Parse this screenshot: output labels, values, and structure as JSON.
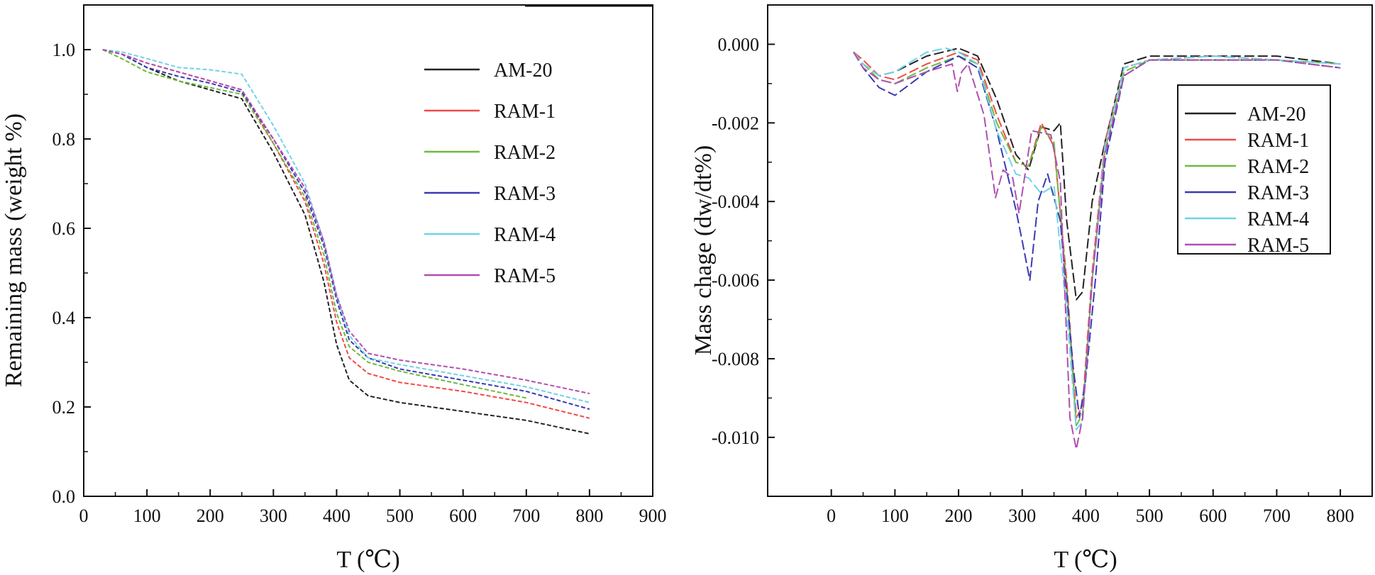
{
  "colors": {
    "AM-20": "#222222",
    "RAM-1": "#ef4a4a",
    "RAM-2": "#6cbb3c",
    "RAM-3": "#3a3ab4",
    "RAM-4": "#6fd3e6",
    "RAM-5": "#b04fb0"
  },
  "chart_data": [
    {
      "type": "line",
      "xlabel": "T (℃)",
      "ylabel": "Remaining mass (weight %)",
      "xlim": [
        0,
        900
      ],
      "ylim": [
        0.0,
        1.1
      ],
      "xticks": [
        0,
        100,
        200,
        300,
        400,
        500,
        600,
        700,
        800,
        900
      ],
      "yticks": [
        0.0,
        0.2,
        0.4,
        0.6,
        0.8,
        1.0
      ],
      "xtick_labels": [
        "0",
        "100",
        "200",
        "300",
        "400",
        "500",
        "600",
        "700",
        "800",
        "900"
      ],
      "ytick_labels": [
        "0.0",
        "0.2",
        "0.4",
        "0.6",
        "0.8",
        "1.0"
      ],
      "legend_position": "upper-right",
      "grid": false,
      "series": [
        {
          "name": "AM-20",
          "x": [
            30,
            60,
            100,
            150,
            200,
            250,
            300,
            350,
            380,
            400,
            420,
            450,
            500,
            600,
            700,
            800
          ],
          "y": [
            1.0,
            0.99,
            0.96,
            0.93,
            0.91,
            0.89,
            0.77,
            0.63,
            0.48,
            0.34,
            0.26,
            0.225,
            0.21,
            0.19,
            0.17,
            0.14
          ]
        },
        {
          "name": "RAM-1",
          "x": [
            30,
            60,
            100,
            150,
            200,
            250,
            300,
            350,
            380,
            400,
            420,
            450,
            500,
            600,
            700,
            800
          ],
          "y": [
            1.0,
            0.99,
            0.97,
            0.95,
            0.93,
            0.91,
            0.79,
            0.66,
            0.52,
            0.39,
            0.31,
            0.275,
            0.255,
            0.235,
            0.21,
            0.175
          ]
        },
        {
          "name": "RAM-2",
          "x": [
            30,
            60,
            100,
            150,
            200,
            250,
            300,
            350,
            380,
            400,
            420,
            450,
            500,
            600,
            700
          ],
          "y": [
            1.0,
            0.98,
            0.95,
            0.93,
            0.915,
            0.9,
            0.79,
            0.67,
            0.54,
            0.41,
            0.335,
            0.3,
            0.28,
            0.25,
            0.22
          ]
        },
        {
          "name": "RAM-3",
          "x": [
            30,
            60,
            100,
            150,
            200,
            250,
            300,
            350,
            380,
            400,
            420,
            450,
            500,
            600,
            700,
            800
          ],
          "y": [
            1.0,
            0.99,
            0.96,
            0.94,
            0.925,
            0.905,
            0.8,
            0.68,
            0.56,
            0.44,
            0.35,
            0.31,
            0.285,
            0.26,
            0.235,
            0.195
          ]
        },
        {
          "name": "RAM-4",
          "x": [
            30,
            60,
            100,
            150,
            200,
            250,
            300,
            350,
            380,
            400,
            420,
            450,
            500,
            600,
            700,
            800
          ],
          "y": [
            1.0,
            0.995,
            0.98,
            0.96,
            0.955,
            0.945,
            0.83,
            0.7,
            0.57,
            0.45,
            0.36,
            0.31,
            0.295,
            0.27,
            0.245,
            0.21
          ]
        },
        {
          "name": "RAM-5",
          "x": [
            30,
            60,
            100,
            150,
            200,
            250,
            300,
            350,
            380,
            400,
            420,
            450,
            500,
            600,
            700,
            800
          ],
          "y": [
            1.0,
            0.99,
            0.97,
            0.95,
            0.93,
            0.91,
            0.8,
            0.69,
            0.57,
            0.45,
            0.37,
            0.32,
            0.305,
            0.285,
            0.26,
            0.23
          ]
        }
      ]
    },
    {
      "type": "line",
      "xlabel": "T (℃)",
      "ylabel": "Mass chage (dw/dt%)",
      "xlim": [
        -100,
        850
      ],
      "ylim": [
        -0.0115,
        0.001
      ],
      "xticks": [
        0,
        100,
        200,
        300,
        400,
        500,
        600,
        700,
        800
      ],
      "yticks": [
        0.0,
        -0.002,
        -0.004,
        -0.006,
        -0.008,
        -0.01
      ],
      "xtick_labels": [
        "0",
        "100",
        "200",
        "300",
        "400",
        "500",
        "600",
        "700",
        "800"
      ],
      "ytick_labels": [
        "0.000",
        "-0.002",
        "-0.004",
        "-0.006",
        "-0.008",
        "-0.010"
      ],
      "legend_position": "right",
      "grid": false,
      "series": [
        {
          "name": "AM-20",
          "x": [
            35,
            50,
            75,
            100,
            150,
            200,
            230,
            260,
            290,
            310,
            330,
            350,
            360,
            370,
            385,
            395,
            410,
            430,
            460,
            500,
            600,
            700,
            800
          ],
          "y": [
            -0.0002,
            -0.0005,
            -0.0008,
            -0.0007,
            -0.0003,
            -0.0001,
            -0.0003,
            -0.0014,
            -0.0028,
            -0.0032,
            -0.0021,
            -0.0022,
            -0.002,
            -0.0045,
            -0.0065,
            -0.0063,
            -0.004,
            -0.0025,
            -0.0005,
            -0.0003,
            -0.0003,
            -0.0003,
            -0.0005
          ]
        },
        {
          "name": "RAM-1",
          "x": [
            35,
            50,
            75,
            100,
            150,
            200,
            230,
            260,
            290,
            310,
            330,
            350,
            370,
            385,
            395,
            410,
            430,
            460,
            500,
            600,
            700,
            800
          ],
          "y": [
            -0.0002,
            -0.0004,
            -0.0008,
            -0.0009,
            -0.0005,
            -0.0002,
            -0.0004,
            -0.0018,
            -0.003,
            -0.0031,
            -0.002,
            -0.0026,
            -0.006,
            -0.0095,
            -0.0092,
            -0.0058,
            -0.0025,
            -0.0006,
            -0.0004,
            -0.0003,
            -0.0004,
            -0.0005
          ]
        },
        {
          "name": "RAM-2",
          "x": [
            35,
            50,
            75,
            100,
            150,
            200,
            230,
            260,
            290,
            310,
            330,
            350,
            370,
            385,
            395,
            410,
            430,
            460,
            500,
            600,
            700,
            800
          ],
          "y": [
            -0.0002,
            -0.0005,
            -0.0009,
            -0.001,
            -0.0006,
            -0.0003,
            -0.0005,
            -0.002,
            -0.003,
            -0.0031,
            -0.0021,
            -0.0025,
            -0.0062,
            -0.0097,
            -0.0094,
            -0.006,
            -0.0027,
            -0.0007,
            -0.0004,
            -0.0004,
            -0.0004,
            -0.0005
          ]
        },
        {
          "name": "RAM-3",
          "x": [
            35,
            50,
            75,
            100,
            150,
            200,
            230,
            260,
            290,
            300,
            312,
            325,
            340,
            360,
            380,
            390,
            400,
            415,
            430,
            460,
            500,
            600,
            700,
            800
          ],
          "y": [
            -0.0002,
            -0.0006,
            -0.0011,
            -0.0013,
            -0.0007,
            -0.0003,
            -0.0006,
            -0.0022,
            -0.0042,
            -0.005,
            -0.006,
            -0.004,
            -0.0033,
            -0.0045,
            -0.0082,
            -0.0095,
            -0.0085,
            -0.006,
            -0.003,
            -0.0008,
            -0.0004,
            -0.0004,
            -0.0004,
            -0.0006
          ]
        },
        {
          "name": "RAM-4",
          "x": [
            35,
            50,
            75,
            100,
            150,
            180,
            200,
            230,
            260,
            290,
            310,
            330,
            350,
            370,
            385,
            395,
            410,
            430,
            460,
            500,
            600,
            700,
            800
          ],
          "y": [
            -0.0002,
            -0.0005,
            -0.0008,
            -0.0007,
            -0.0002,
            -0.0001,
            -0.0002,
            -0.0005,
            -0.0022,
            -0.0033,
            -0.0034,
            -0.0038,
            -0.0036,
            -0.0068,
            -0.0098,
            -0.0096,
            -0.006,
            -0.0026,
            -0.0006,
            -0.0004,
            -0.0003,
            -0.0004,
            -0.0005
          ]
        },
        {
          "name": "RAM-5",
          "x": [
            35,
            50,
            75,
            100,
            150,
            190,
            198,
            205,
            215,
            240,
            258,
            270,
            285,
            295,
            315,
            345,
            360,
            375,
            385,
            395,
            410,
            430,
            460,
            500,
            600,
            700,
            800
          ],
          "y": [
            -0.0002,
            -0.0006,
            -0.0009,
            -0.001,
            -0.0007,
            -0.0005,
            -0.0012,
            -0.0007,
            -0.0005,
            -0.0018,
            -0.0039,
            -0.0032,
            -0.0034,
            -0.0043,
            -0.0022,
            -0.0023,
            -0.0035,
            -0.0095,
            -0.0103,
            -0.0095,
            -0.006,
            -0.0028,
            -0.0008,
            -0.0004,
            -0.0004,
            -0.0004,
            -0.0006
          ]
        }
      ]
    }
  ]
}
